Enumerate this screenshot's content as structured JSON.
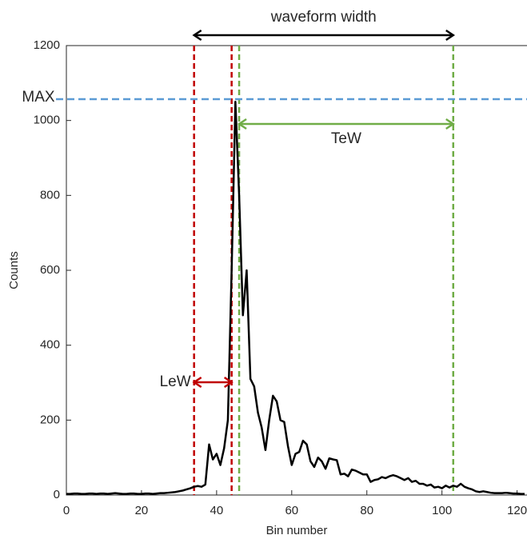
{
  "chart_data": {
    "type": "line",
    "x_label": "Bin number",
    "y_label": "Counts",
    "x": [
      0,
      1,
      2,
      3,
      4,
      5,
      6,
      7,
      8,
      9,
      10,
      11,
      12,
      13,
      14,
      15,
      16,
      17,
      18,
      19,
      20,
      21,
      22,
      23,
      24,
      25,
      26,
      27,
      28,
      29,
      30,
      31,
      32,
      33,
      34,
      35,
      36,
      37,
      38,
      39,
      40,
      41,
      42,
      43,
      44,
      45,
      46,
      47,
      48,
      49,
      50,
      51,
      52,
      53,
      54,
      55,
      56,
      57,
      58,
      59,
      60,
      61,
      62,
      63,
      64,
      65,
      66,
      67,
      68,
      69,
      70,
      71,
      72,
      73,
      74,
      75,
      76,
      77,
      78,
      79,
      80,
      81,
      82,
      83,
      84,
      85,
      86,
      87,
      88,
      89,
      90,
      91,
      92,
      93,
      94,
      95,
      96,
      97,
      98,
      99,
      100,
      101,
      102,
      103,
      104,
      105,
      106,
      107,
      108,
      109,
      110,
      111,
      112,
      113,
      114,
      115,
      116,
      117,
      118,
      119,
      120,
      121,
      122
    ],
    "values": [
      3,
      3,
      4,
      4,
      3,
      3,
      4,
      4,
      3,
      4,
      4,
      3,
      4,
      5,
      4,
      3,
      3,
      4,
      4,
      3,
      3,
      4,
      4,
      3,
      4,
      5,
      5,
      6,
      7,
      8,
      10,
      12,
      15,
      18,
      22,
      24,
      22,
      28,
      135,
      95,
      110,
      80,
      125,
      200,
      600,
      1050,
      800,
      480,
      600,
      310,
      290,
      220,
      180,
      120,
      200,
      265,
      250,
      200,
      195,
      130,
      80,
      110,
      115,
      145,
      135,
      90,
      75,
      100,
      90,
      70,
      98,
      95,
      93,
      55,
      57,
      50,
      68,
      65,
      60,
      55,
      55,
      35,
      40,
      42,
      48,
      45,
      50,
      53,
      50,
      45,
      40,
      45,
      35,
      38,
      30,
      30,
      25,
      28,
      20,
      22,
      18,
      25,
      20,
      25,
      22,
      30,
      22,
      18,
      15,
      10,
      8,
      10,
      8,
      6,
      5,
      5,
      5,
      6,
      5,
      4,
      4,
      3,
      3
    ],
    "color": "#000000",
    "xlim": [
      0,
      122
    ],
    "ylim": [
      0,
      1200
    ],
    "xticks": [
      0,
      20,
      40,
      60,
      80,
      100,
      120
    ],
    "yticks": [
      0,
      200,
      400,
      600,
      800,
      1000,
      1200
    ],
    "annotations": {
      "max": {
        "label": "MAX",
        "value": 1057,
        "color": "#5b9bd5"
      },
      "lew": {
        "label": "LeW",
        "x": [
          34,
          44
        ],
        "color": "#c00000"
      },
      "tew": {
        "label": "TeW",
        "x": [
          46,
          103
        ],
        "color": "#70ad47"
      },
      "width": {
        "label": "waveform width",
        "x": [
          34,
          103
        ],
        "color": "#000000"
      }
    }
  }
}
